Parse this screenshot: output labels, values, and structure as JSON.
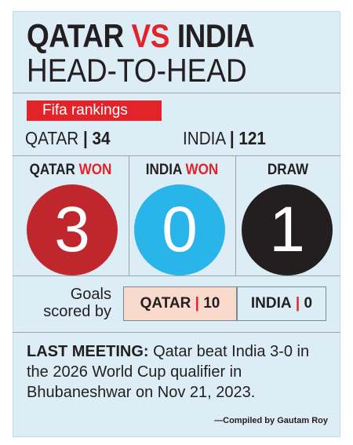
{
  "title": {
    "team1": "QATAR",
    "vs": "VS",
    "team2": "INDIA",
    "subtitle": "HEAD-TO-HEAD"
  },
  "fifa_rankings": {
    "label": "Fifa rankings",
    "qatar": {
      "team": "QATAR",
      "separator": "|",
      "rank": "34"
    },
    "india": {
      "team": "INDIA",
      "separator": "|",
      "rank": "121"
    }
  },
  "results": [
    {
      "label_team": "QATAR",
      "label_suffix": "WON",
      "value": "3",
      "color": "#c0272d"
    },
    {
      "label_team": "INDIA",
      "label_suffix": "WON",
      "value": "0",
      "color": "#29b4ea"
    },
    {
      "label_team": "DRAW",
      "label_suffix": "",
      "value": "1",
      "color": "#231f20"
    }
  ],
  "goals": {
    "label": "Goals\nscored by",
    "qatar": {
      "team": "QATAR",
      "separator": "|",
      "value": "10",
      "bg": "#f9d9cc"
    },
    "india": {
      "team": "INDIA",
      "separator": "|",
      "value": "0",
      "bg": "#dcedf6"
    }
  },
  "last_meeting": {
    "heading": "LAST MEETING:",
    "text": "Qatar beat India 3-0 in the 2026 World Cup qualifier in Bhubaneshwar on Nov 21, 2023."
  },
  "credit": "—Compiled by Gautam Roy",
  "colors": {
    "accent_red": "#e22329",
    "panel_bg": "#dcedf6",
    "text": "#231f20"
  }
}
